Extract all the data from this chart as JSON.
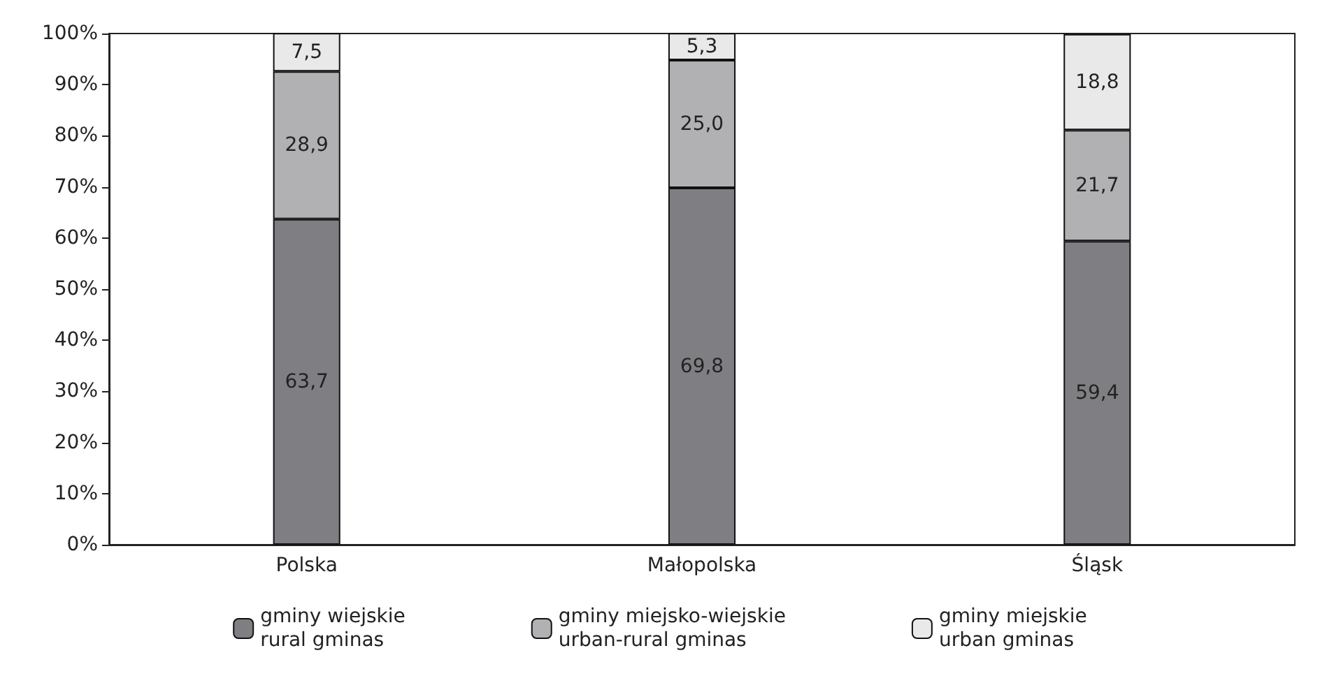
{
  "chart_data": {
    "type": "bar",
    "stacked": true,
    "categories": [
      "Polska",
      "Małopolska",
      "Śląsk"
    ],
    "series": [
      {
        "name": "gminy wiejskie\nrural gminas",
        "color": "#7f7f83",
        "values": [
          63.7,
          69.8,
          59.4
        ],
        "value_labels": [
          "63,7",
          "69,8",
          "59,4"
        ]
      },
      {
        "name": "gminy miejsko-wiejskie\nurban-rural gminas",
        "color": "#b1b1b3",
        "values": [
          28.9,
          25.0,
          21.7
        ],
        "value_labels": [
          "28,9",
          "25,0",
          "21,7"
        ]
      },
      {
        "name": "gminy miejskie\nurban gminas",
        "color": "#e9e9ea",
        "values": [
          7.5,
          5.3,
          18.8
        ],
        "value_labels": [
          "7,5",
          "5,3",
          "18,8"
        ]
      }
    ],
    "ylim": [
      0,
      100
    ],
    "yticks": [
      {
        "value": 0,
        "label": "0%"
      },
      {
        "value": 10,
        "label": "10%"
      },
      {
        "value": 20,
        "label": "20%"
      },
      {
        "value": 30,
        "label": "30%"
      },
      {
        "value": 40,
        "label": "40%"
      },
      {
        "value": 50,
        "label": "50%"
      },
      {
        "value": 60,
        "label": "60%"
      },
      {
        "value": 70,
        "label": "70%"
      },
      {
        "value": 80,
        "label": "80%"
      },
      {
        "value": 90,
        "label": "90%"
      },
      {
        "value": 100,
        "label": "100%"
      }
    ],
    "grid": false,
    "legend": "bottom"
  }
}
